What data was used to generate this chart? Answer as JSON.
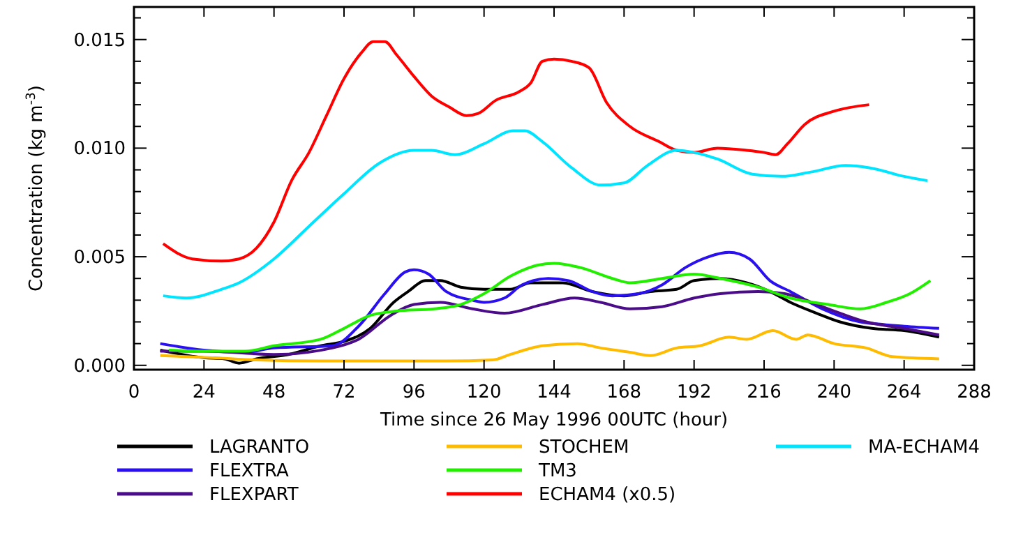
{
  "chart_data": {
    "type": "line",
    "xlabel": "Time since 26 May 1996 00UTC (hour)",
    "ylabel": "Concentration (kg m$^{-3}$)",
    "xlim": [
      0,
      288
    ],
    "xticks": [
      0,
      24,
      48,
      72,
      96,
      120,
      144,
      168,
      192,
      216,
      240,
      264,
      288
    ],
    "ylim": [
      -0.0002,
      0.0165
    ],
    "yticks": [
      {
        "value": 0,
        "label": "0.000"
      },
      {
        "value": 0.001,
        "label": null
      },
      {
        "value": 0.002,
        "label": null
      },
      {
        "value": 0.003,
        "label": null
      },
      {
        "value": 0.004,
        "label": null
      },
      {
        "value": 0.005,
        "label": "0.005"
      },
      {
        "value": 0.006,
        "label": null
      },
      {
        "value": 0.007,
        "label": null
      },
      {
        "value": 0.008,
        "label": null
      },
      {
        "value": 0.009,
        "label": null
      },
      {
        "value": 0.01,
        "label": "0.010"
      },
      {
        "value": 0.011,
        "label": null
      },
      {
        "value": 0.012,
        "label": null
      },
      {
        "value": 0.013,
        "label": null
      },
      {
        "value": 0.014,
        "label": null
      },
      {
        "value": 0.015,
        "label": "0.015"
      },
      {
        "value": 0.016,
        "label": null
      }
    ],
    "grid": false,
    "legend": "bottom",
    "marker": "none",
    "line_style": "solid",
    "series": [
      {
        "name": "LAGRANTO",
        "color": "#000000",
        "x": [
          9,
          24,
          31,
          36,
          42,
          53,
          64,
          72,
          81,
          89,
          94,
          100,
          105,
          112,
          120,
          129,
          136,
          147,
          157,
          168,
          177,
          186,
          192,
          201,
          210,
          218,
          225,
          234,
          242,
          253,
          264,
          276
        ],
        "values": [
          0.0007,
          0.00035,
          0.0003,
          0.0001,
          0.0003,
          0.0005,
          0.0009,
          0.0011,
          0.0017,
          0.0029,
          0.0034,
          0.0039,
          0.0039,
          0.0036,
          0.0035,
          0.0035,
          0.0038,
          0.0038,
          0.0034,
          0.0032,
          0.0034,
          0.0035,
          0.0039,
          0.004,
          0.0038,
          0.0034,
          0.0029,
          0.0024,
          0.002,
          0.0017,
          0.0016,
          0.0013
        ]
      },
      {
        "name": "FLEXTRA",
        "color": "#2a10f0",
        "x": [
          9,
          24,
          38,
          48,
          68,
          77,
          86,
          93,
          96,
          101,
          107,
          116,
          120,
          127,
          133,
          142,
          149,
          157,
          164,
          173,
          181,
          189,
          197,
          204,
          211,
          218,
          225,
          236,
          249,
          255,
          264,
          276
        ],
        "values": [
          0.001,
          0.0007,
          0.0006,
          0.0008,
          0.0009,
          0.0018,
          0.0033,
          0.0043,
          0.0044,
          0.0042,
          0.0034,
          0.003,
          0.0029,
          0.0031,
          0.0037,
          0.004,
          0.0039,
          0.0034,
          0.0032,
          0.0033,
          0.0037,
          0.0045,
          0.005,
          0.0052,
          0.0049,
          0.0039,
          0.0034,
          0.0026,
          0.002,
          0.0019,
          0.0018,
          0.0017
        ]
      },
      {
        "name": "FLEXPART",
        "color": "#4b0c8a",
        "x": [
          9,
          24,
          48,
          68,
          77,
          88,
          96,
          105,
          116,
          127,
          140,
          151,
          160,
          170,
          181,
          192,
          201,
          214,
          223,
          238,
          251,
          264,
          276
        ],
        "values": [
          0.00065,
          0.00065,
          0.0005,
          0.0008,
          0.0012,
          0.0023,
          0.0028,
          0.0029,
          0.0026,
          0.0024,
          0.0028,
          0.0031,
          0.0029,
          0.0026,
          0.0027,
          0.0031,
          0.0033,
          0.0034,
          0.0033,
          0.0026,
          0.002,
          0.0017,
          0.0014
        ]
      },
      {
        "name": "STOCHEM",
        "color": "#ffbb00",
        "x": [
          9,
          27,
          42,
          64,
          86,
          107,
          123,
          129,
          140,
          152,
          160,
          170,
          177,
          186,
          194,
          204,
          210,
          219,
          227,
          231,
          240,
          251,
          260,
          276
        ],
        "values": [
          0.00045,
          0.00035,
          0.00025,
          0.0002,
          0.0002,
          0.0002,
          0.00025,
          0.0005,
          0.0009,
          0.001,
          0.0008,
          0.0006,
          0.00045,
          0.0008,
          0.0009,
          0.0013,
          0.0012,
          0.0016,
          0.0012,
          0.0014,
          0.001,
          0.0008,
          0.0004,
          0.0003
        ]
      },
      {
        "name": "TM3",
        "color": "#22ee00",
        "x": [
          12,
          24,
          38,
          48,
          64,
          72,
          81,
          90,
          103,
          112,
          120,
          129,
          138,
          144,
          153,
          164,
          170,
          181,
          192,
          201,
          214,
          225,
          238,
          249,
          258,
          266,
          273
        ],
        "values": [
          0.0007,
          0.00065,
          0.00065,
          0.0009,
          0.0012,
          0.0017,
          0.0023,
          0.0025,
          0.0026,
          0.0028,
          0.0033,
          0.0041,
          0.0046,
          0.0047,
          0.0045,
          0.004,
          0.0038,
          0.004,
          0.0042,
          0.004,
          0.0036,
          0.0031,
          0.0028,
          0.0026,
          0.0029,
          0.0033,
          0.0039
        ]
      },
      {
        "name": "ECHAM4 (x0.5)",
        "color": "#ff0000",
        "x": [
          10,
          20,
          30,
          36,
          42,
          48,
          54,
          60,
          66,
          72,
          78,
          82,
          86,
          90,
          96,
          102,
          108,
          114,
          118,
          124,
          132,
          136,
          140,
          144,
          150,
          156,
          162,
          170,
          180,
          186,
          192,
          200,
          210,
          216,
          220,
          224,
          230,
          240,
          252
        ],
        "values": [
          0.0056,
          0.0049,
          0.0048,
          0.0049,
          0.0054,
          0.0066,
          0.0085,
          0.0098,
          0.0115,
          0.0132,
          0.0144,
          0.0149,
          0.0149,
          0.0143,
          0.0133,
          0.0124,
          0.0119,
          0.0115,
          0.0116,
          0.0122,
          0.0126,
          0.013,
          0.014,
          0.0141,
          0.014,
          0.0137,
          0.0121,
          0.011,
          0.0103,
          0.0099,
          0.0098,
          0.01,
          0.0099,
          0.0098,
          0.0097,
          0.0102,
          0.0111,
          0.0117,
          0.012
        ]
      },
      {
        "name": "MA-ECHAM4",
        "color": "#00e5ff",
        "x": [
          10,
          18,
          30,
          36,
          48,
          60,
          72,
          84,
          96,
          102,
          110,
          120,
          130,
          134,
          140,
          150,
          160,
          168,
          176,
          186,
          192,
          200,
          212,
          222,
          232,
          244,
          252,
          264,
          272
        ],
        "values": [
          0.0032,
          0.0031,
          0.0035,
          0.0038,
          0.0049,
          0.0064,
          0.0079,
          0.0093,
          0.0099,
          0.0099,
          0.0097,
          0.0102,
          0.0108,
          0.0108,
          0.0103,
          0.0091,
          0.0083,
          0.0084,
          0.0092,
          0.0099,
          0.0098,
          0.0095,
          0.0088,
          0.0087,
          0.0089,
          0.0092,
          0.0091,
          0.0087,
          0.0085
        ]
      }
    ]
  }
}
